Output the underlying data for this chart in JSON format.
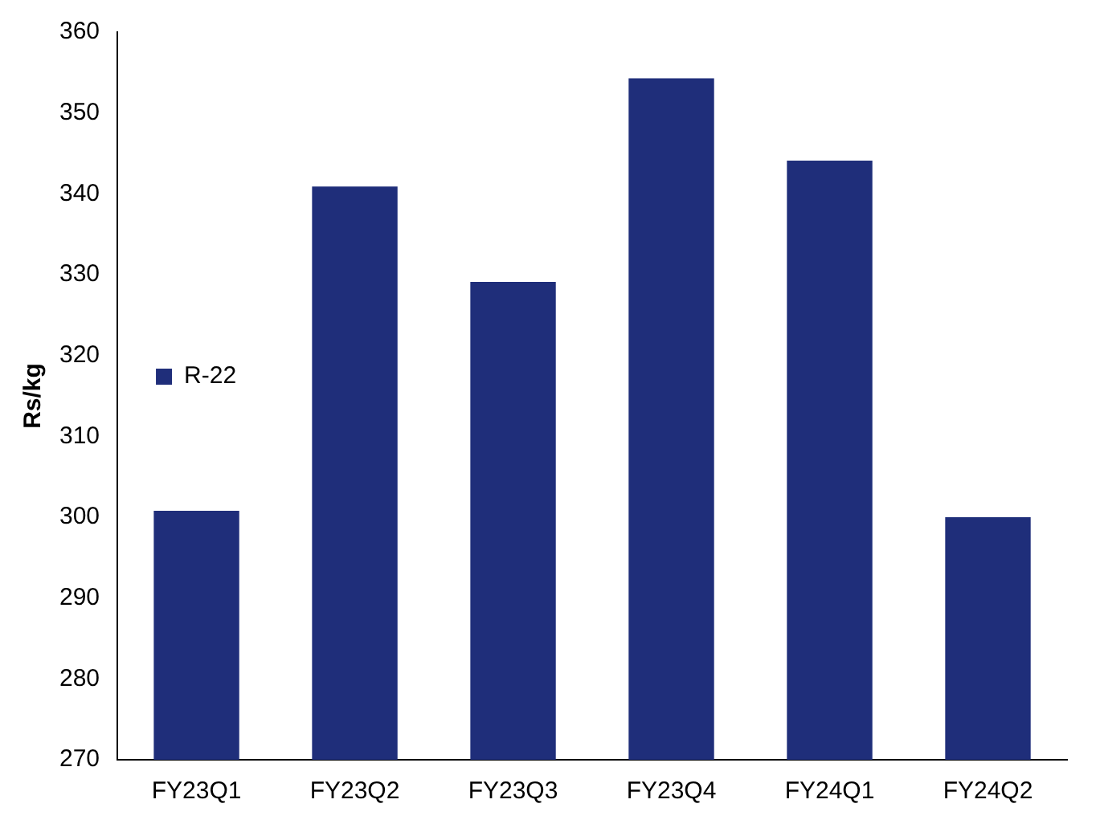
{
  "chart_data": {
    "type": "bar",
    "ylabel": "Rs/kg",
    "categories": [
      "FY23Q1",
      "FY23Q2",
      "FY23Q3",
      "FY23Q4",
      "FY24Q1",
      "FY24Q2"
    ],
    "series": [
      {
        "name": "R-22",
        "color": "#1f2e7a",
        "values": [
          300.8,
          340.9,
          329.1,
          354.3,
          344.1,
          300
        ]
      }
    ],
    "ylim": [
      270,
      360
    ],
    "yticks": [
      270,
      280,
      290,
      300,
      310,
      320,
      330,
      340,
      350,
      360
    ],
    "grid": false,
    "legend": "top"
  }
}
